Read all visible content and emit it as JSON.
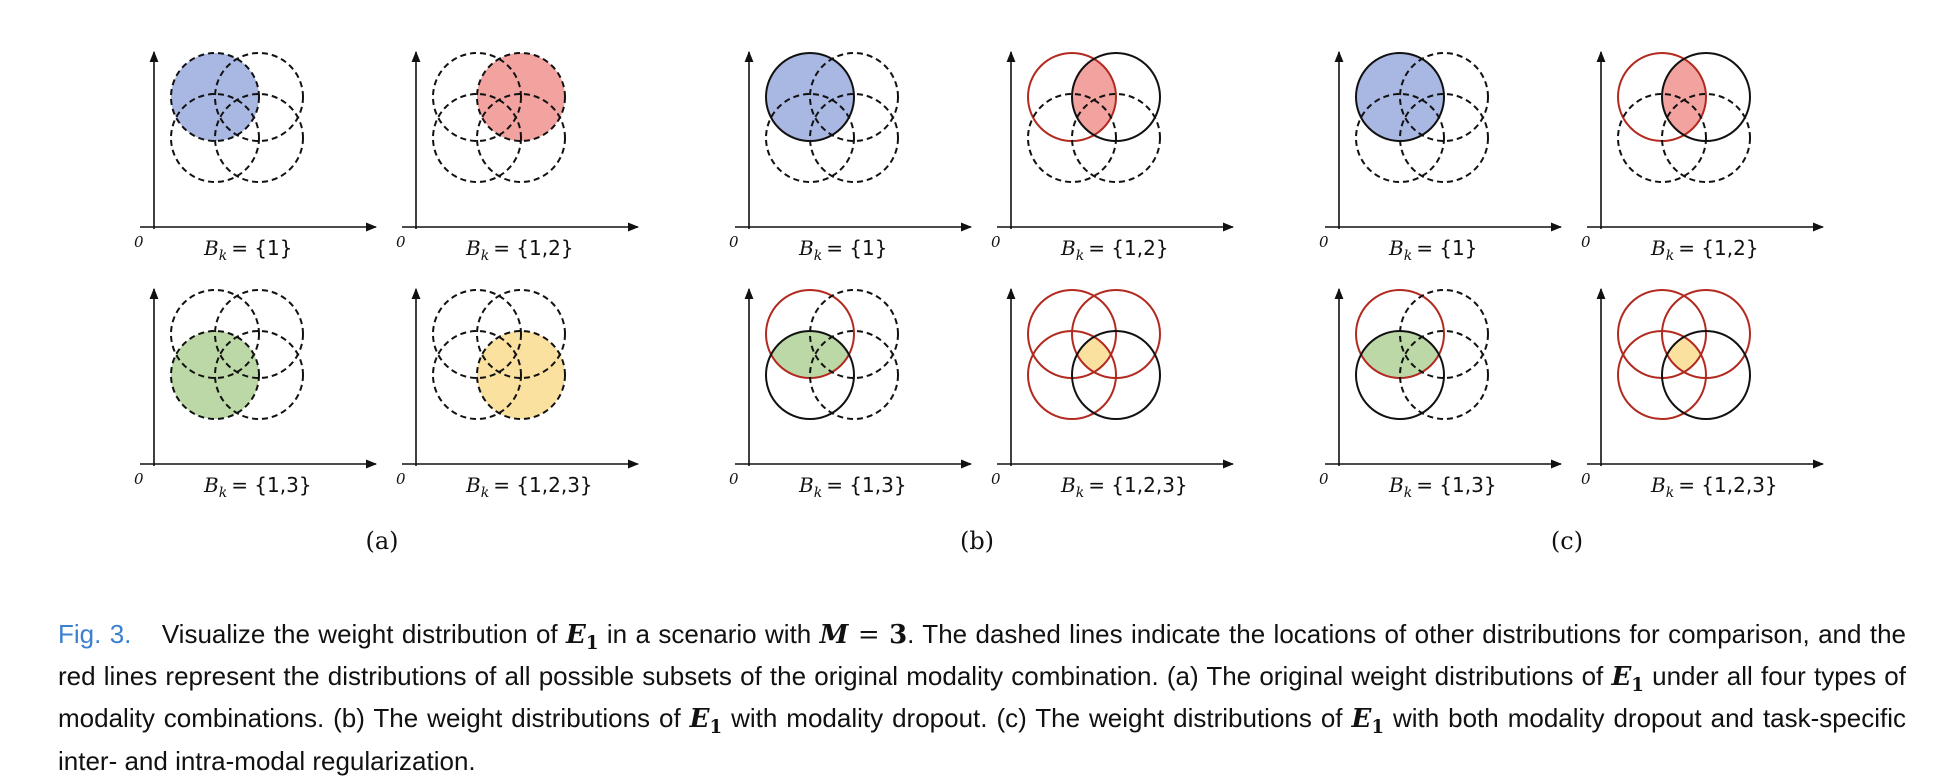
{
  "figure": {
    "origin_label": "0",
    "panels": [
      {
        "label": "(a)",
        "subplots": [
          {
            "set_var": "B",
            "set_sub": "k",
            "set_value": "= {1}",
            "fill_circle": 0,
            "fill_color": "#a9b8e3",
            "region": "full",
            "outlines": [
              "dashed",
              "dashed",
              "dashed",
              "dashed"
            ]
          },
          {
            "set_var": "B",
            "set_sub": "k",
            "set_value": "= {1,2}",
            "fill_circle": 1,
            "fill_color": "#f2a3a0",
            "region": "full",
            "outlines": [
              "dashed",
              "dashed",
              "dashed",
              "dashed"
            ]
          },
          {
            "set_var": "B",
            "set_sub": "k",
            "set_value": "= {1,3}",
            "fill_circle": 2,
            "fill_color": "#bcd8a6",
            "region": "full",
            "outlines": [
              "dashed",
              "dashed",
              "dashed",
              "dashed"
            ]
          },
          {
            "set_var": "B",
            "set_sub": "k",
            "set_value": "= {1,2,3}",
            "fill_circle": 3,
            "fill_color": "#fbe1a0",
            "region": "full",
            "outlines": [
              "dashed",
              "dashed",
              "dashed",
              "dashed"
            ]
          }
        ]
      },
      {
        "label": "(b)",
        "subplots": [
          {
            "set_var": "B",
            "set_sub": "k",
            "set_value": "= {1}",
            "fill_circle": 0,
            "fill_color": "#a9b8e3",
            "region": "full",
            "outlines": [
              "solid",
              "dashed",
              "dashed",
              "dashed"
            ]
          },
          {
            "set_var": "B",
            "set_sub": "k",
            "set_value": "= {1,2}",
            "fill_circle": 1,
            "fill_color": "#f2a3a0",
            "region": "intersect",
            "outlines": [
              "red",
              "solid",
              "dashed",
              "dashed"
            ]
          },
          {
            "set_var": "B",
            "set_sub": "k",
            "set_value": "= {1,3}",
            "fill_circle": 2,
            "fill_color": "#bcd8a6",
            "region": "intersect",
            "outlines": [
              "red",
              "dashed",
              "solid",
              "dashed"
            ]
          },
          {
            "set_var": "B",
            "set_sub": "k",
            "set_value": "= {1,2,3}",
            "fill_circle": 3,
            "fill_color": "#fbe1a0",
            "region": "intersect",
            "outlines": [
              "red",
              "red",
              "red",
              "solid"
            ]
          }
        ]
      },
      {
        "label": "(c)",
        "subplots": [
          {
            "set_var": "B",
            "set_sub": "k",
            "set_value": "= {1}",
            "fill_circle": 0,
            "fill_color": "#a9b8e3",
            "region": "full",
            "outlines": [
              "solid",
              "dashed",
              "dashed",
              "dashed"
            ]
          },
          {
            "set_var": "B",
            "set_sub": "k",
            "set_value": "= {1,2}",
            "fill_circle": 1,
            "fill_color": "#f2a3a0",
            "region": "intersect",
            "outlines": [
              "red",
              "solid",
              "dashed",
              "dashed"
            ]
          },
          {
            "set_var": "B",
            "set_sub": "k",
            "set_value": "= {1,3}",
            "fill_circle": 2,
            "fill_color": "#bcd8a6",
            "region": "intersect",
            "outlines": [
              "red",
              "dashed",
              "solid",
              "dashed"
            ]
          },
          {
            "set_var": "B",
            "set_sub": "k",
            "set_value": "= {1,2,3}",
            "fill_circle": 3,
            "fill_color": "#fbe1a0",
            "region": "intersect",
            "outlines": [
              "red",
              "red",
              "red",
              "solid"
            ]
          }
        ]
      }
    ],
    "colors": {
      "red_outline": "#b22a1f",
      "black_outline": "#111111"
    }
  },
  "caption": {
    "label": "Fig. 3.",
    "t1": "Visualize the weight distribution of",
    "e_var": "E",
    "e_sub": "1",
    "t2": "in a scenario with",
    "m_var": "M",
    "m_eq": " = ",
    "m_val": "3",
    "t3": ". The dashed lines indicate the locations of other distributions for comparison, and the red lines represent the distributions of all possible subsets of the original modality combination. (a) The original weight distributions of",
    "t4": "under all four types of modality combinations. (b) The weight distributions of",
    "t5": "with modality dropout. (c) The weight distributions of",
    "t6": "with both modality dropout and task-specific inter- and intra-modal regularization."
  }
}
